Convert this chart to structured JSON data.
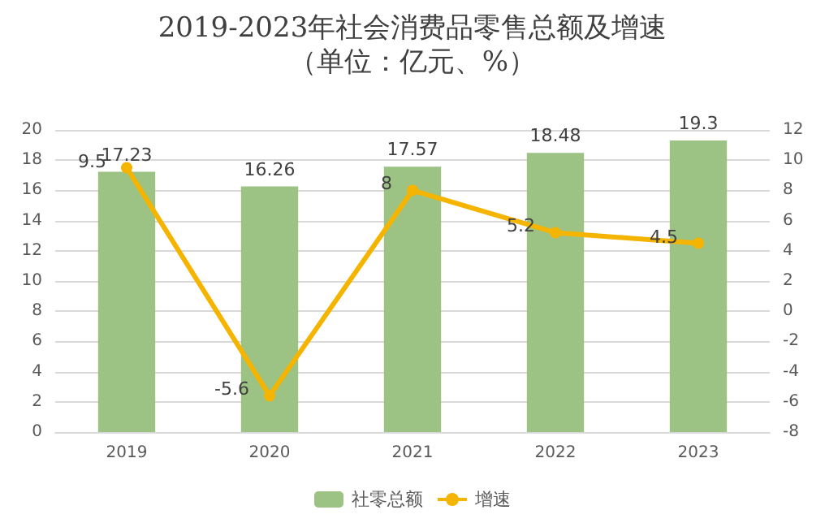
{
  "chart_data": {
    "type": "bar",
    "title": "2019-2023年社会消费品零售总额及增速",
    "subtitle": "（单位：亿元、%）",
    "categories": [
      "2019",
      "2020",
      "2021",
      "2022",
      "2023"
    ],
    "series": [
      {
        "name": "社零总额",
        "color": "#9dc384",
        "values": [
          17.23,
          16.26,
          17.57,
          18.48,
          19.3
        ]
      },
      {
        "name": "增速",
        "type": "line",
        "axis": "y2",
        "color": "#f5b400",
        "values": [
          9.5,
          -5.6,
          8,
          5.2,
          4.5
        ],
        "marker": "circle"
      }
    ],
    "ylim": [
      0,
      20
    ],
    "yticks": [
      0,
      2,
      4,
      6,
      8,
      10,
      12,
      14,
      16,
      18,
      20
    ],
    "y2lim": [
      -8,
      12
    ],
    "y2ticks": [
      -8,
      -6,
      -4,
      -2,
      0,
      2,
      4,
      6,
      8,
      10,
      12
    ],
    "grid": "y",
    "legend": "bottom",
    "data_labels": true
  }
}
